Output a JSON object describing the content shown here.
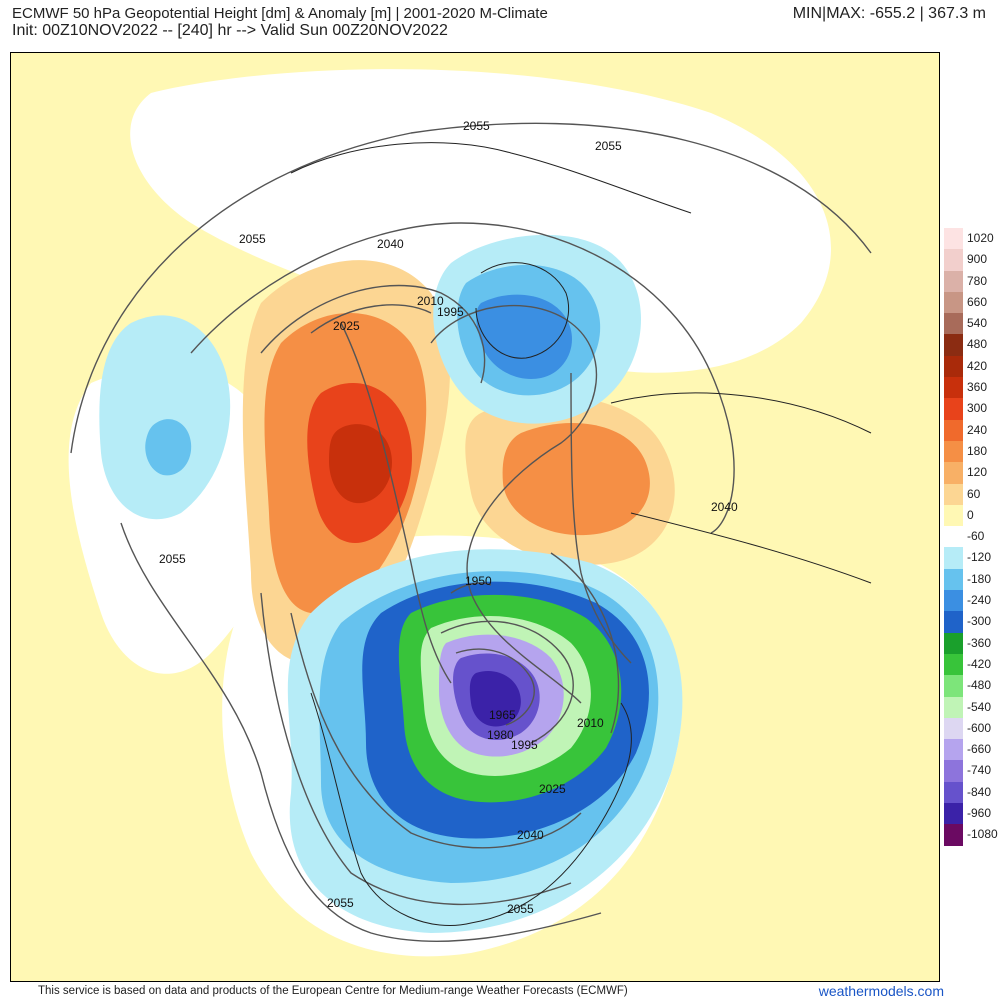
{
  "header": {
    "title": "ECMWF 50 hPa Geopotential Height [dm] & Anomaly [m] | 2001-2020 M-Climate",
    "subtitle": "Init: 00Z10NOV2022 -- [240] hr --> Valid Sun 00Z20NOV2022",
    "minmax": "MIN|MAX: -655.2 | 367.3 m"
  },
  "map": {
    "contour_labels": [
      {
        "text": "2055"
      },
      {
        "text": "2055"
      },
      {
        "text": "2055"
      },
      {
        "text": "2055"
      },
      {
        "text": "2055"
      },
      {
        "text": "2055"
      },
      {
        "text": "2040"
      },
      {
        "text": "2040"
      },
      {
        "text": "2040"
      },
      {
        "text": "2025"
      },
      {
        "text": "2025"
      },
      {
        "text": "2010"
      },
      {
        "text": "2010"
      },
      {
        "text": "1995"
      },
      {
        "text": "1995"
      },
      {
        "text": "1950"
      },
      {
        "text": "1965"
      },
      {
        "text": "1980"
      }
    ],
    "colors": {
      "land_background": "#fff8b4",
      "near_zero": "#ffffff",
      "positive_anomaly": "#e8431b",
      "negative_anomaly": "#2f6fd6",
      "min_center": "#3b22a8"
    }
  },
  "legend": {
    "items": [
      {
        "label": "1020",
        "color": "#fde3e3"
      },
      {
        "label": "900",
        "color": "#f2cfcc"
      },
      {
        "label": "780",
        "color": "#dbb1a8"
      },
      {
        "label": "660",
        "color": "#c89685"
      },
      {
        "label": "540",
        "color": "#a86b5a"
      },
      {
        "label": "480",
        "color": "#8b2c12"
      },
      {
        "label": "420",
        "color": "#a92a0a"
      },
      {
        "label": "360",
        "color": "#c8300c"
      },
      {
        "label": "300",
        "color": "#e8431b"
      },
      {
        "label": "240",
        "color": "#f06a2c"
      },
      {
        "label": "180",
        "color": "#f58f45"
      },
      {
        "label": "120",
        "color": "#f8b066"
      },
      {
        "label": "60",
        "color": "#fcd693"
      },
      {
        "label": "0",
        "color": "#fff8b4"
      },
      {
        "label": "-60",
        "color": "#ffffff"
      },
      {
        "label": "-120",
        "color": "#b6ecf7"
      },
      {
        "label": "-180",
        "color": "#66c2ee"
      },
      {
        "label": "-240",
        "color": "#3b8fe2"
      },
      {
        "label": "-300",
        "color": "#1f63c9"
      },
      {
        "label": "-360",
        "color": "#1aa02c"
      },
      {
        "label": "-420",
        "color": "#38c43a"
      },
      {
        "label": "-480",
        "color": "#7de57a"
      },
      {
        "label": "-540",
        "color": "#c0f4b6"
      },
      {
        "label": "-600",
        "color": "#ddd7f2"
      },
      {
        "label": "-660",
        "color": "#b5a4ee"
      },
      {
        "label": "-740",
        "color": "#8d74dc"
      },
      {
        "label": "-840",
        "color": "#6652cc"
      },
      {
        "label": "-960",
        "color": "#3b22a8"
      },
      {
        "label": "-1080",
        "color": "#6b0a62"
      }
    ]
  },
  "footer": {
    "credit": "This service is based on data and products of the European Centre for Medium-range Weather Forecasts (ECMWF)",
    "brand": "weathermodels.com"
  }
}
